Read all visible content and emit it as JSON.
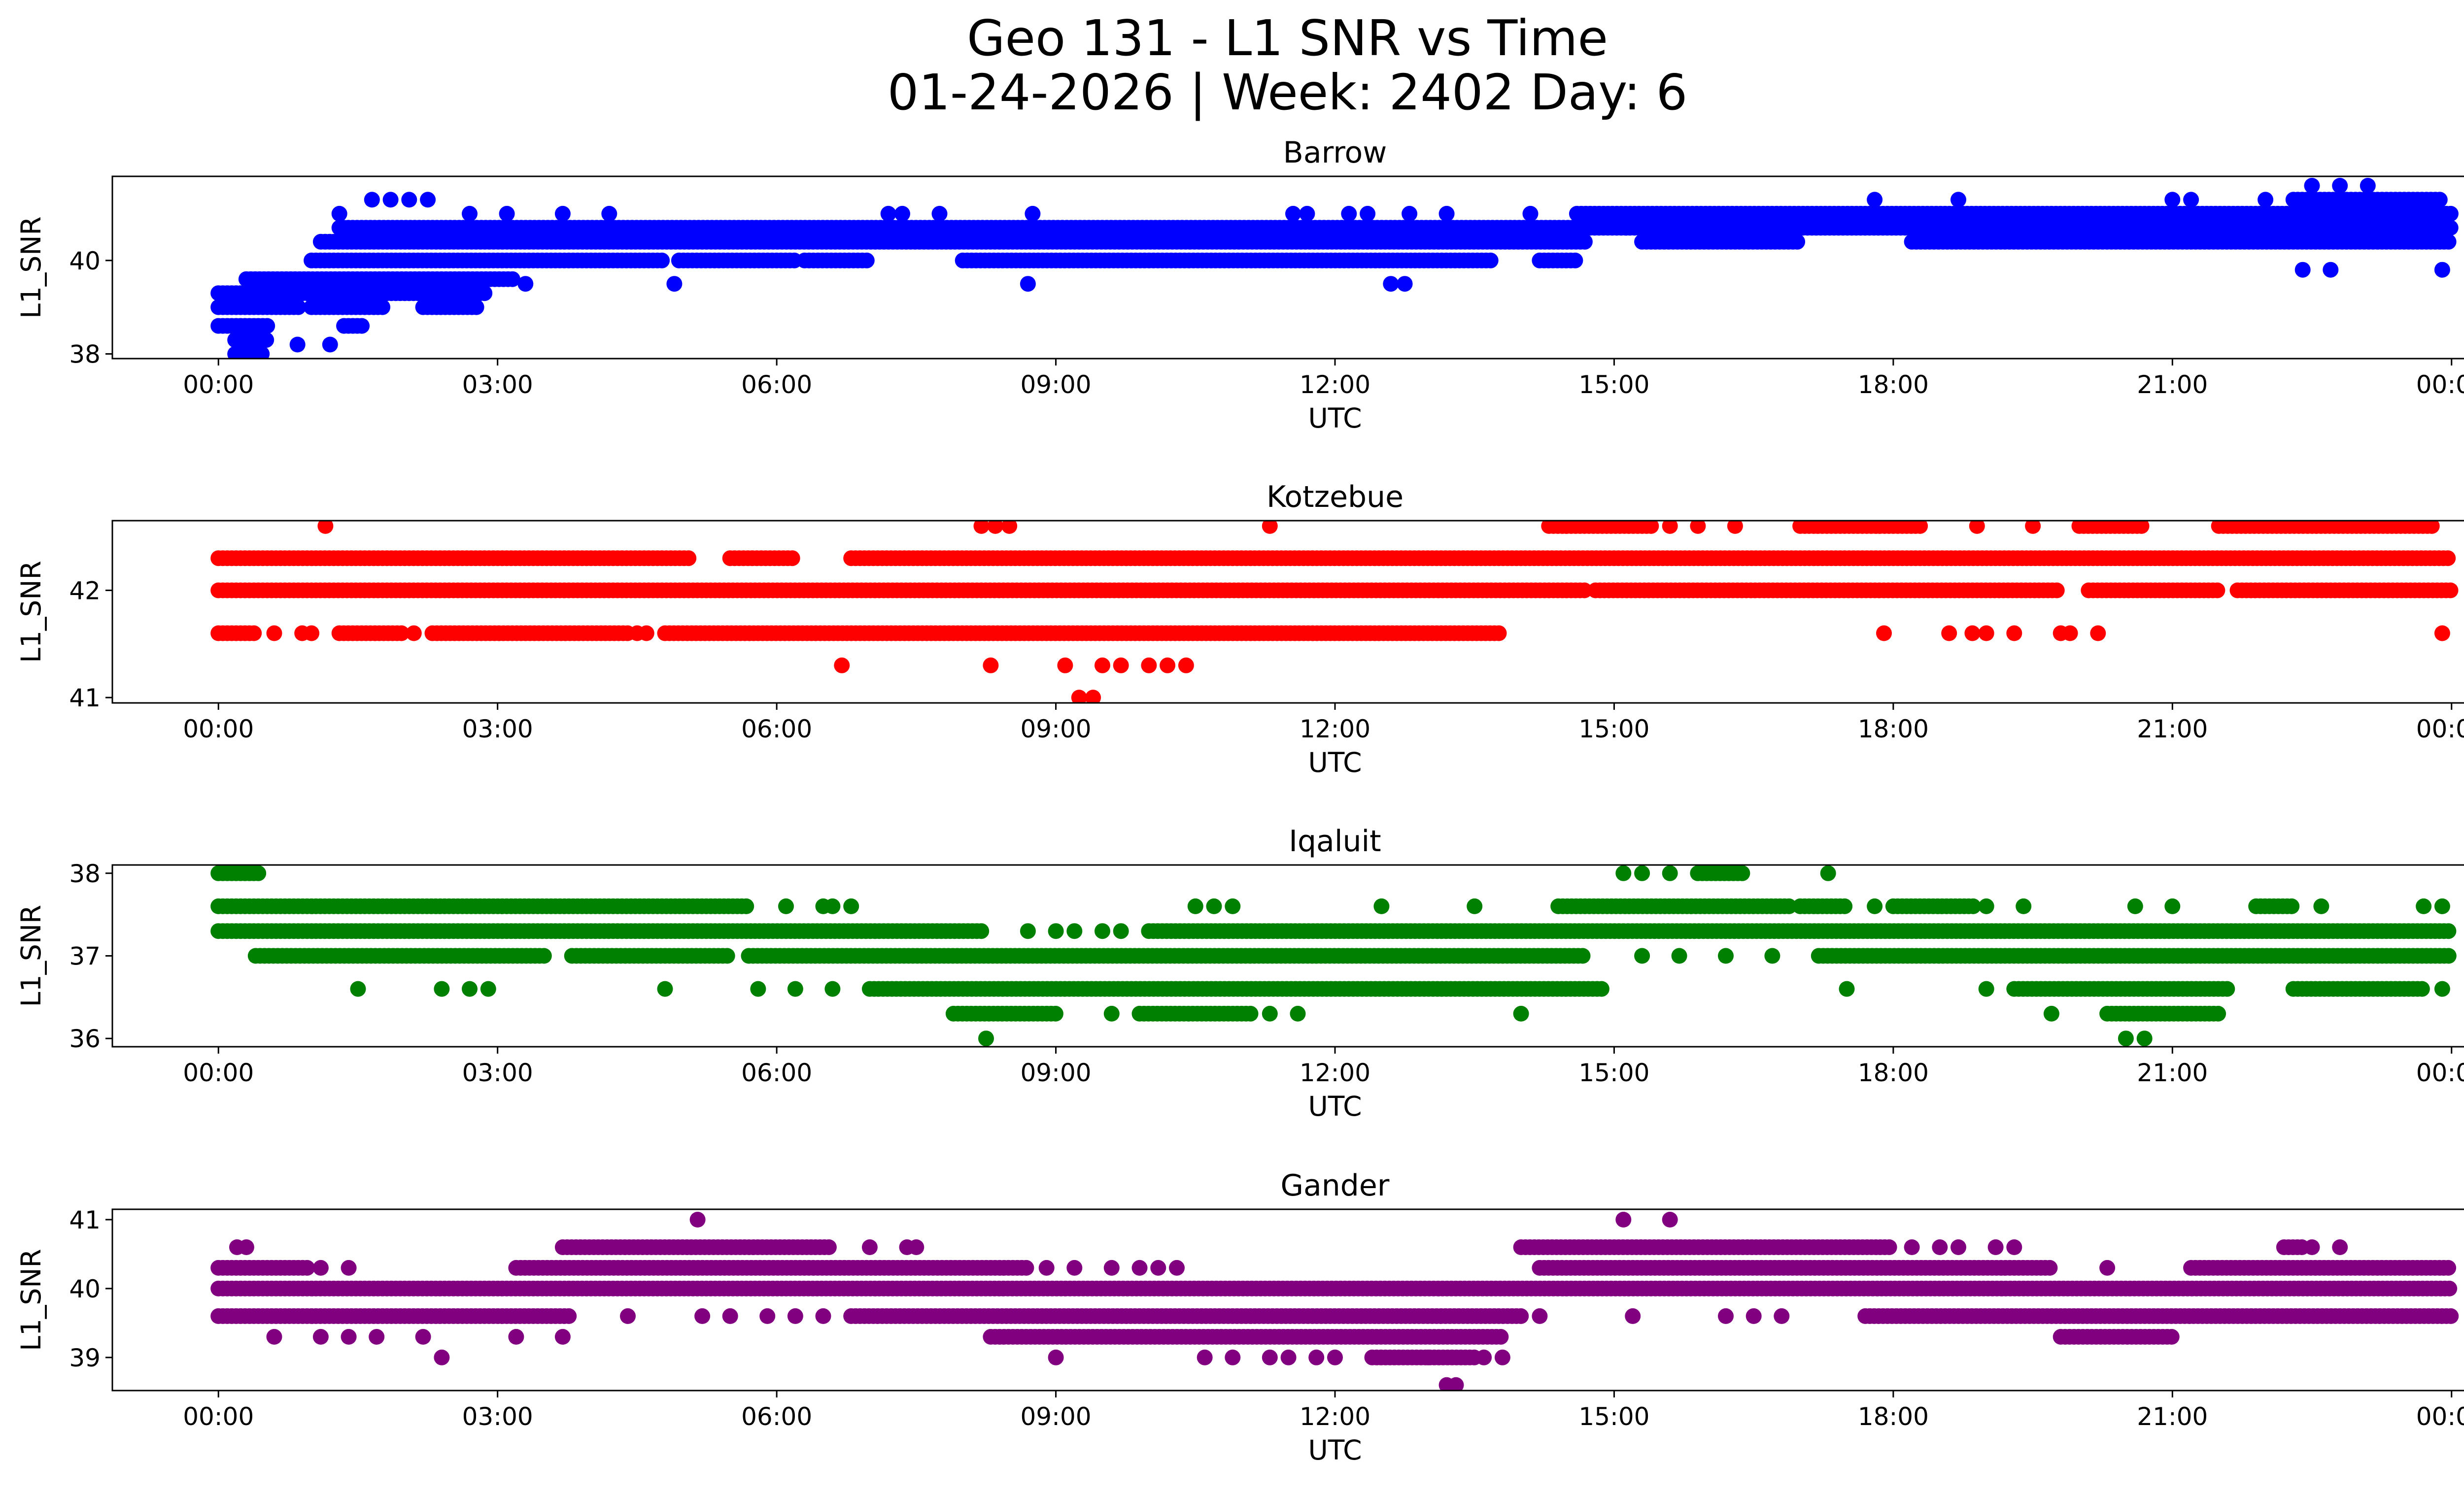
{
  "figure": {
    "title_line1": "Geo 131 - L1 SNR vs Time",
    "title_line2": "01-24-2026 | Week: 2402 Day: 6"
  },
  "chart_data": [
    {
      "type": "scatter",
      "title": "Barrow",
      "xlabel": "UTC",
      "ylabel": "L1_SNR",
      "color": "#0000ff",
      "x_unit": "hours_utc",
      "xlim": [
        -1.14,
        25.14
      ],
      "ylim": [
        37.9,
        41.8
      ],
      "yticks": [
        38,
        40
      ],
      "xticks": [
        0,
        3,
        6,
        9,
        12,
        15,
        18,
        21,
        24
      ],
      "xtick_labels": [
        "00:00",
        "03:00",
        "06:00",
        "09:00",
        "12:00",
        "15:00",
        "18:00",
        "21:00",
        "00:00"
      ],
      "level_segments": [
        {
          "y": 38.0,
          "spans": [
            [
              0.18,
              0.5
            ]
          ]
        },
        {
          "y": 38.3,
          "spans": [
            [
              0.18,
              0.55
            ]
          ]
        },
        {
          "y": 38.6,
          "spans": [
            [
              0.0,
              0.55
            ],
            [
              1.35,
              1.55
            ]
          ]
        },
        {
          "y": 39.0,
          "spans": [
            [
              0.0,
              0.9
            ],
            [
              1.0,
              1.8
            ],
            [
              2.2,
              2.8
            ]
          ]
        },
        {
          "y": 39.3,
          "spans": [
            [
              0.0,
              2.9
            ]
          ]
        },
        {
          "y": 39.6,
          "spans": [
            [
              0.3,
              3.2
            ]
          ]
        },
        {
          "y": 40.0,
          "spans": [
            [
              1.0,
              4.8
            ],
            [
              4.95,
              6.2
            ],
            [
              6.3,
              7.0
            ],
            [
              8.0,
              13.7
            ],
            [
              14.2,
              14.6
            ]
          ]
        },
        {
          "y": 40.4,
          "spans": [
            [
              1.1,
              14.7
            ],
            [
              15.3,
              17.0
            ],
            [
              18.2,
              24.0
            ]
          ]
        },
        {
          "y": 40.7,
          "spans": [
            [
              1.3,
              24.0
            ]
          ]
        },
        {
          "y": 41.0,
          "spans": [
            [
              14.6,
              24.0
            ]
          ]
        },
        {
          "y": 41.3,
          "spans": [
            [
              22.3,
              23.9
            ]
          ]
        }
      ],
      "sparse_points": [
        [
          1.65,
          41.3
        ],
        [
          1.85,
          41.3
        ],
        [
          2.05,
          41.3
        ],
        [
          2.25,
          41.3
        ],
        [
          1.3,
          41.0
        ],
        [
          2.7,
          41.0
        ],
        [
          3.1,
          41.0
        ],
        [
          3.7,
          41.0
        ],
        [
          4.2,
          41.0
        ],
        [
          7.2,
          41.0
        ],
        [
          7.35,
          41.0
        ],
        [
          7.75,
          41.0
        ],
        [
          8.75,
          41.0
        ],
        [
          11.55,
          41.0
        ],
        [
          11.7,
          41.0
        ],
        [
          12.15,
          41.0
        ],
        [
          12.35,
          41.0
        ],
        [
          12.8,
          41.0
        ],
        [
          13.2,
          41.0
        ],
        [
          14.1,
          41.0
        ],
        [
          17.8,
          41.3
        ],
        [
          18.7,
          41.3
        ],
        [
          21.0,
          41.3
        ],
        [
          21.2,
          41.3
        ],
        [
          22.0,
          41.3
        ],
        [
          22.5,
          41.6
        ],
        [
          22.8,
          41.6
        ],
        [
          23.1,
          41.6
        ],
        [
          0.85,
          38.2
        ],
        [
          1.2,
          38.2
        ],
        [
          8.7,
          39.5
        ],
        [
          3.3,
          39.5
        ],
        [
          4.9,
          39.5
        ],
        [
          12.6,
          39.5
        ],
        [
          12.75,
          39.5
        ],
        [
          22.4,
          39.8
        ],
        [
          22.7,
          39.8
        ],
        [
          23.9,
          39.8
        ]
      ]
    },
    {
      "type": "scatter",
      "title": "Kotzebue",
      "xlabel": "UTC",
      "ylabel": "L1_SNR",
      "color": "#ff0000",
      "x_unit": "hours_utc",
      "xlim": [
        -1.14,
        25.14
      ],
      "ylim": [
        40.95,
        42.65
      ],
      "yticks": [
        41,
        42
      ],
      "xticks": [
        0,
        3,
        6,
        9,
        12,
        15,
        18,
        21,
        24
      ],
      "xtick_labels": [
        "00:00",
        "03:00",
        "06:00",
        "09:00",
        "12:00",
        "15:00",
        "18:00",
        "21:00",
        "00:00"
      ],
      "level_segments": [
        {
          "y": 42.3,
          "spans": [
            [
              0.0,
              5.1
            ],
            [
              5.5,
              6.2
            ],
            [
              6.8,
              24.0
            ]
          ]
        },
        {
          "y": 42.0,
          "spans": [
            [
              0.0,
              14.7
            ],
            [
              14.8,
              19.8
            ],
            [
              20.1,
              21.5
            ],
            [
              21.7,
              24.0
            ]
          ]
        },
        {
          "y": 41.6,
          "spans": [
            [
              0.0,
              0.4
            ],
            [
              1.3,
              2.0
            ],
            [
              2.3,
              4.4
            ],
            [
              4.8,
              13.8
            ]
          ]
        },
        {
          "y": 42.6,
          "spans": [
            [
              14.3,
              15.4
            ],
            [
              17.0,
              18.3
            ],
            [
              20.0,
              20.7
            ],
            [
              21.5,
              23.8
            ]
          ]
        }
      ],
      "sparse_points": [
        [
          1.15,
          42.6
        ],
        [
          8.2,
          42.6
        ],
        [
          8.35,
          42.6
        ],
        [
          8.5,
          42.6
        ],
        [
          11.3,
          42.6
        ],
        [
          15.6,
          42.6
        ],
        [
          15.9,
          42.6
        ],
        [
          16.3,
          42.6
        ],
        [
          18.9,
          42.6
        ],
        [
          19.5,
          42.6
        ],
        [
          6.7,
          41.3
        ],
        [
          8.3,
          41.3
        ],
        [
          9.1,
          41.3
        ],
        [
          9.5,
          41.3
        ],
        [
          9.7,
          41.3
        ],
        [
          10.0,
          41.3
        ],
        [
          10.2,
          41.3
        ],
        [
          10.4,
          41.3
        ],
        [
          9.25,
          41.0
        ],
        [
          9.4,
          41.0
        ],
        [
          17.9,
          41.6
        ],
        [
          18.6,
          41.6
        ],
        [
          18.85,
          41.6
        ],
        [
          19.0,
          41.6
        ],
        [
          19.3,
          41.6
        ],
        [
          19.8,
          41.6
        ],
        [
          19.9,
          41.6
        ],
        [
          20.2,
          41.6
        ],
        [
          23.9,
          41.6
        ],
        [
          0.6,
          41.6
        ],
        [
          0.9,
          41.6
        ],
        [
          1.0,
          41.6
        ],
        [
          2.1,
          41.6
        ],
        [
          4.5,
          41.6
        ],
        [
          4.6,
          41.6
        ]
      ]
    },
    {
      "type": "scatter",
      "title": "Iqaluit",
      "xlabel": "UTC",
      "ylabel": "L1_SNR",
      "color": "#008000",
      "x_unit": "hours_utc",
      "xlim": [
        -1.14,
        25.14
      ],
      "ylim": [
        35.9,
        38.1
      ],
      "yticks": [
        36,
        37,
        38
      ],
      "xticks": [
        0,
        3,
        6,
        9,
        12,
        15,
        18,
        21,
        24
      ],
      "xtick_labels": [
        "00:00",
        "03:00",
        "06:00",
        "09:00",
        "12:00",
        "15:00",
        "18:00",
        "21:00",
        "00:00"
      ],
      "level_segments": [
        {
          "y": 38.0,
          "spans": [
            [
              0.0,
              0.45
            ],
            [
              15.9,
              16.4
            ]
          ]
        },
        {
          "y": 37.6,
          "spans": [
            [
              0.0,
              5.7
            ],
            [
              14.4,
              16.9
            ],
            [
              17.0,
              17.5
            ],
            [
              18.0,
              18.9
            ],
            [
              21.9,
              22.3
            ]
          ]
        },
        {
          "y": 37.3,
          "spans": [
            [
              0.0,
              8.2
            ],
            [
              10.0,
              24.0
            ]
          ]
        },
        {
          "y": 37.0,
          "spans": [
            [
              0.4,
              3.5
            ],
            [
              3.8,
              5.5
            ],
            [
              5.7,
              14.7
            ],
            [
              17.2,
              24.0
            ]
          ]
        },
        {
          "y": 36.6,
          "spans": [
            [
              7.0,
              14.9
            ],
            [
              19.3,
              21.6
            ],
            [
              22.3,
              23.7
            ]
          ]
        },
        {
          "y": 36.3,
          "spans": [
            [
              7.9,
              9.0
            ],
            [
              9.9,
              11.1
            ],
            [
              20.3,
              21.5
            ]
          ]
        }
      ],
      "sparse_points": [
        [
          15.1,
          38.0
        ],
        [
          15.3,
          38.0
        ],
        [
          15.6,
          38.0
        ],
        [
          17.3,
          38.0
        ],
        [
          6.1,
          37.6
        ],
        [
          6.5,
          37.6
        ],
        [
          6.6,
          37.6
        ],
        [
          6.8,
          37.6
        ],
        [
          10.5,
          37.6
        ],
        [
          10.7,
          37.6
        ],
        [
          10.9,
          37.6
        ],
        [
          12.5,
          37.6
        ],
        [
          13.5,
          37.6
        ],
        [
          17.8,
          37.6
        ],
        [
          19.0,
          37.6
        ],
        [
          19.4,
          37.6
        ],
        [
          20.6,
          37.6
        ],
        [
          21.0,
          37.6
        ],
        [
          22.6,
          37.6
        ],
        [
          23.7,
          37.6
        ],
        [
          23.9,
          37.6
        ],
        [
          1.5,
          36.6
        ],
        [
          2.4,
          36.6
        ],
        [
          2.7,
          36.6
        ],
        [
          2.9,
          36.6
        ],
        [
          4.8,
          36.6
        ],
        [
          5.8,
          36.6
        ],
        [
          6.2,
          36.6
        ],
        [
          6.6,
          36.6
        ],
        [
          17.5,
          36.6
        ],
        [
          19.0,
          36.6
        ],
        [
          23.9,
          36.6
        ],
        [
          9.6,
          36.3
        ],
        [
          11.6,
          36.3
        ],
        [
          11.3,
          36.3
        ],
        [
          14.0,
          36.3
        ],
        [
          19.7,
          36.3
        ],
        [
          8.25,
          36.0
        ],
        [
          20.5,
          36.0
        ],
        [
          20.7,
          36.0
        ],
        [
          8.7,
          37.3
        ],
        [
          9.0,
          37.3
        ],
        [
          9.2,
          37.3
        ],
        [
          9.5,
          37.3
        ],
        [
          9.7,
          37.3
        ],
        [
          15.3,
          37.0
        ],
        [
          15.7,
          37.0
        ],
        [
          16.2,
          37.0
        ],
        [
          16.7,
          37.0
        ]
      ]
    },
    {
      "type": "scatter",
      "title": "Gander",
      "xlabel": "UTC",
      "ylabel": "L1_SNR",
      "color": "#800080",
      "x_unit": "hours_utc",
      "xlim": [
        -1.14,
        25.14
      ],
      "ylim": [
        38.52,
        41.15
      ],
      "yticks": [
        39,
        40,
        41
      ],
      "xticks": [
        0,
        3,
        6,
        9,
        12,
        15,
        18,
        21,
        24
      ],
      "xtick_labels": [
        "00:00",
        "03:00",
        "06:00",
        "09:00",
        "12:00",
        "15:00",
        "18:00",
        "21:00",
        "00:00"
      ],
      "level_segments": [
        {
          "y": 40.6,
          "spans": [
            [
              3.7,
              6.6
            ],
            [
              14.0,
              18.0
            ],
            [
              22.2,
              22.4
            ]
          ]
        },
        {
          "y": 40.3,
          "spans": [
            [
              0.0,
              1.0
            ],
            [
              3.2,
              8.7
            ],
            [
              14.2,
              19.7
            ],
            [
              21.2,
              24.0
            ]
          ]
        },
        {
          "y": 40.0,
          "spans": [
            [
              0.0,
              24.0
            ]
          ]
        },
        {
          "y": 39.6,
          "spans": [
            [
              0.0,
              3.8
            ],
            [
              6.8,
              14.0
            ],
            [
              17.7,
              24.0
            ]
          ]
        },
        {
          "y": 39.3,
          "spans": [
            [
              8.3,
              13.8
            ],
            [
              19.8,
              21.0
            ]
          ]
        },
        {
          "y": 39.0,
          "spans": [
            [
              12.4,
              13.5
            ]
          ]
        }
      ],
      "sparse_points": [
        [
          0.2,
          40.6
        ],
        [
          0.3,
          40.6
        ],
        [
          5.15,
          41.0
        ],
        [
          15.1,
          41.0
        ],
        [
          15.6,
          41.0
        ],
        [
          7.0,
          40.6
        ],
        [
          7.4,
          40.6
        ],
        [
          7.5,
          40.6
        ],
        [
          18.2,
          40.6
        ],
        [
          18.5,
          40.6
        ],
        [
          18.7,
          40.6
        ],
        [
          19.1,
          40.6
        ],
        [
          19.3,
          40.6
        ],
        [
          22.5,
          40.6
        ],
        [
          22.8,
          40.6
        ],
        [
          8.9,
          40.3
        ],
        [
          9.2,
          40.3
        ],
        [
          9.6,
          40.3
        ],
        [
          9.9,
          40.3
        ],
        [
          10.1,
          40.3
        ],
        [
          10.3,
          40.3
        ],
        [
          20.3,
          40.3
        ],
        [
          1.1,
          40.3
        ],
        [
          1.4,
          40.3
        ],
        [
          0.6,
          39.3
        ],
        [
          1.1,
          39.3
        ],
        [
          1.4,
          39.3
        ],
        [
          1.7,
          39.3
        ],
        [
          2.2,
          39.3
        ],
        [
          3.2,
          39.3
        ],
        [
          3.7,
          39.3
        ],
        [
          2.4,
          39.0
        ],
        [
          9.0,
          39.0
        ],
        [
          10.6,
          39.0
        ],
        [
          10.9,
          39.0
        ],
        [
          11.3,
          39.0
        ],
        [
          11.5,
          39.0
        ],
        [
          11.8,
          39.0
        ],
        [
          12.0,
          39.0
        ],
        [
          13.2,
          38.6
        ],
        [
          13.3,
          38.6
        ],
        [
          4.4,
          39.6
        ],
        [
          5.2,
          39.6
        ],
        [
          5.5,
          39.6
        ],
        [
          5.9,
          39.6
        ],
        [
          6.2,
          39.6
        ],
        [
          6.5,
          39.6
        ],
        [
          14.2,
          39.6
        ],
        [
          15.2,
          39.6
        ],
        [
          16.2,
          39.6
        ],
        [
          16.5,
          39.6
        ],
        [
          16.8,
          39.6
        ],
        [
          13.6,
          39.0
        ],
        [
          13.8,
          39.0
        ],
        [
          13.0,
          39.0
        ]
      ]
    }
  ]
}
